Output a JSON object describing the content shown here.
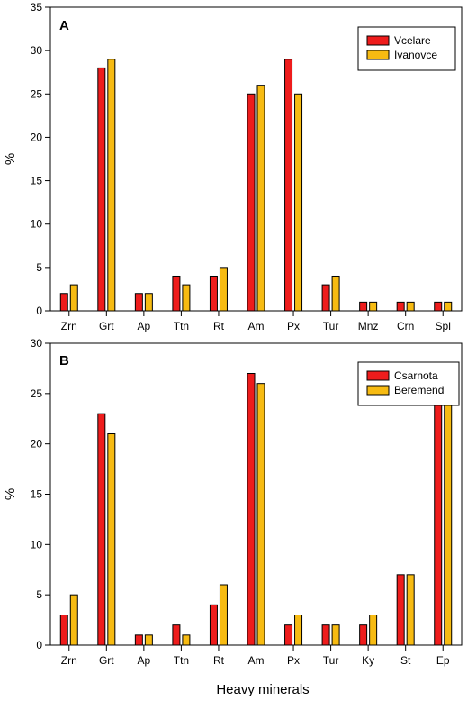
{
  "chart_data": [
    {
      "type": "bar",
      "panel_label": "A",
      "categories": [
        "Zrn",
        "Grt",
        "Ap",
        "Ttn",
        "Rt",
        "Am",
        "Px",
        "Tur",
        "Mnz",
        "Crn",
        "Spl"
      ],
      "series": [
        {
          "name": "Vcelare",
          "color": "#ee1c1c",
          "values": [
            2,
            28,
            2,
            4,
            4,
            25,
            29,
            3,
            1,
            1,
            1
          ]
        },
        {
          "name": "Ivanovce",
          "color": "#f7bb12",
          "values": [
            3,
            29,
            2,
            3,
            5,
            26,
            25,
            4,
            1,
            1,
            1
          ]
        }
      ],
      "xlabel": "",
      "ylabel": "%",
      "ylim": [
        0,
        35
      ],
      "yticks": [
        0,
        5,
        10,
        15,
        20,
        25,
        30,
        35
      ],
      "grid": false,
      "legend_position": "top-right"
    },
    {
      "type": "bar",
      "panel_label": "B",
      "categories": [
        "Zrn",
        "Grt",
        "Ap",
        "Ttn",
        "Rt",
        "Am",
        "Px",
        "Tur",
        "Ky",
        "St",
        "Ep"
      ],
      "series": [
        {
          "name": "Csarnota",
          "color": "#ee1c1c",
          "values": [
            3,
            23,
            1,
            2,
            4,
            27,
            2,
            2,
            2,
            7,
            27
          ]
        },
        {
          "name": "Beremend",
          "color": "#f7bb12",
          "values": [
            5,
            21,
            1,
            1,
            6,
            26,
            3,
            2,
            3,
            7,
            25
          ]
        }
      ],
      "xlabel": "Heavy minerals",
      "ylabel": "%",
      "ylim": [
        0,
        30
      ],
      "yticks": [
        0,
        5,
        10,
        15,
        20,
        25,
        30
      ],
      "grid": false,
      "legend_position": "top-right"
    }
  ]
}
